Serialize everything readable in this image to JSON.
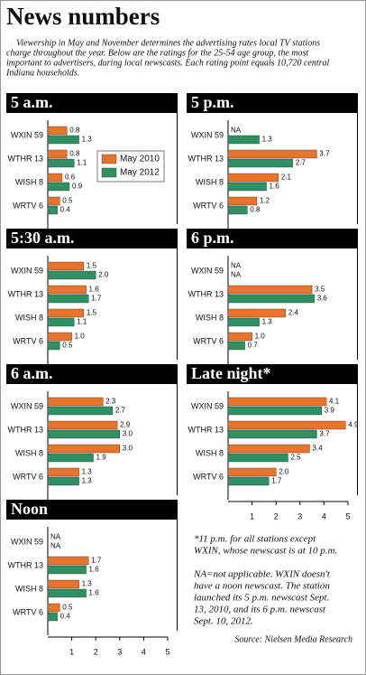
{
  "title": "News numbers",
  "intro": [
    "Viewership in May and November determines the advertising rates local TV stations",
    "charge throughout the year. Below are the ratings for the 25-54 age group, the most",
    "important to advertisers, during local newscasts. Each rating point equals 10,720 central",
    "Indiana households."
  ],
  "footnote": [
    "*11 p.m. for all stations except",
    "WXIN, whose newscast is at 10 p.m."
  ],
  "na_note": [
    "NA=not applicable. WXIN doesn't",
    "have a noon newscast. The station",
    "launched its 5 p.m. newscast Sept.",
    "13, 2010, and its 6 p.m. newscast",
    "Sept. 10, 2012."
  ],
  "source": "Source: Nielsen Media Research",
  "chart_data": [
    {
      "type": "bar",
      "title": "5 a.m.",
      "categories": [
        "WXIN 59",
        "WTHR 13",
        "WISH 8",
        "WRTV 6"
      ],
      "xlim": [
        0,
        5
      ],
      "series": [
        {
          "name": "May 2010",
          "color": "#e8732c",
          "values": [
            0.8,
            0.8,
            0.6,
            0.5
          ],
          "value_labels": [
            "0.8",
            "0.8",
            "0.6",
            "0.5"
          ]
        },
        {
          "name": "May 2012",
          "color": "#2f9063",
          "values": [
            1.3,
            1.1,
            0.9,
            0.4
          ],
          "value_labels": [
            "1.3",
            "1.1",
            "0.9",
            "0.4"
          ]
        }
      ]
    },
    {
      "type": "bar",
      "title": "5:30 a.m.",
      "categories": [
        "WXIN 59",
        "WTHR 13",
        "WISH 8",
        "WRTV 6"
      ],
      "xlim": [
        0,
        5
      ],
      "series": [
        {
          "color": "#e8732c",
          "values": [
            1.5,
            1.6,
            1.5,
            1.0
          ],
          "value_labels": [
            "1.5",
            "1.6",
            "1.5",
            "1.0"
          ]
        },
        {
          "color": "#2f9063",
          "values": [
            2.0,
            1.7,
            1.1,
            0.5
          ],
          "value_labels": [
            "2.0",
            "1.7",
            "1.1",
            "0.5"
          ]
        }
      ]
    },
    {
      "type": "bar",
      "title": "6 a.m.",
      "categories": [
        "WXIN 59",
        "WTHR 13",
        "WISH 8",
        "WRTV 6"
      ],
      "xlim": [
        0,
        5
      ],
      "series": [
        {
          "color": "#e8732c",
          "values": [
            2.3,
            2.9,
            3.0,
            1.3
          ],
          "value_labels": [
            "2.3",
            "2.9",
            "3.0",
            "1.3"
          ]
        },
        {
          "color": "#2f9063",
          "values": [
            2.7,
            3.0,
            1.9,
            1.3
          ],
          "value_labels": [
            "2.7",
            "3.0",
            "1.9",
            "1.3"
          ]
        }
      ]
    },
    {
      "type": "bar",
      "title": "Noon",
      "categories": [
        "WXIN 59",
        "WTHR 13",
        "WISH 8",
        "WRTV 6"
      ],
      "xlim": [
        0,
        5
      ],
      "xticks": [
        1,
        2,
        3,
        4,
        5
      ],
      "series": [
        {
          "color": "#e8732c",
          "values": [
            null,
            1.7,
            1.3,
            0.5
          ],
          "value_labels": [
            "NA",
            "1.7",
            "1.3",
            "0.5"
          ]
        },
        {
          "color": "#2f9063",
          "values": [
            null,
            1.6,
            1.6,
            0.4
          ],
          "value_labels": [
            "NA",
            "1.6",
            "1.6",
            "0.4"
          ]
        }
      ]
    },
    {
      "type": "bar",
      "title": "5 p.m.",
      "categories": [
        "WXIN 59",
        "WTHR 13",
        "WISH 8",
        "WRTV 6"
      ],
      "xlim": [
        0,
        5
      ],
      "series": [
        {
          "color": "#e8732c",
          "values": [
            null,
            3.7,
            2.1,
            1.2
          ],
          "value_labels": [
            "NA",
            "3.7",
            "2.1",
            "1.2"
          ]
        },
        {
          "color": "#2f9063",
          "values": [
            1.3,
            2.7,
            1.6,
            0.8
          ],
          "value_labels": [
            "1.3",
            "2.7",
            "1.6",
            "0.8"
          ]
        }
      ]
    },
    {
      "type": "bar",
      "title": "6 p.m.",
      "categories": [
        "WXIN 59",
        "WTHR 13",
        "WISH 8",
        "WRTV 6"
      ],
      "xlim": [
        0,
        5
      ],
      "series": [
        {
          "color": "#e8732c",
          "values": [
            null,
            3.5,
            2.4,
            1.0
          ],
          "value_labels": [
            "NA",
            "3.5",
            "2.4",
            "1.0"
          ]
        },
        {
          "color": "#2f9063",
          "values": [
            null,
            3.6,
            1.3,
            0.7
          ],
          "value_labels": [
            "NA",
            "3.6",
            "1.3",
            "0.7"
          ]
        }
      ]
    },
    {
      "type": "bar",
      "title": "Late night*",
      "categories": [
        "WXIN 59",
        "WTHR 13",
        "WISH 8",
        "WRTV 6"
      ],
      "xlim": [
        0,
        5
      ],
      "xticks": [
        1,
        2,
        3,
        4,
        5
      ],
      "series": [
        {
          "color": "#e8732c",
          "values": [
            4.1,
            4.9,
            3.4,
            2.0
          ],
          "value_labels": [
            "4.1",
            "4.9",
            "3.4",
            "2.0"
          ]
        },
        {
          "color": "#2f9063",
          "values": [
            3.9,
            3.7,
            2.5,
            1.7
          ],
          "value_labels": [
            "3.9",
            "3.7",
            "2.5",
            "1.7"
          ]
        }
      ]
    }
  ]
}
